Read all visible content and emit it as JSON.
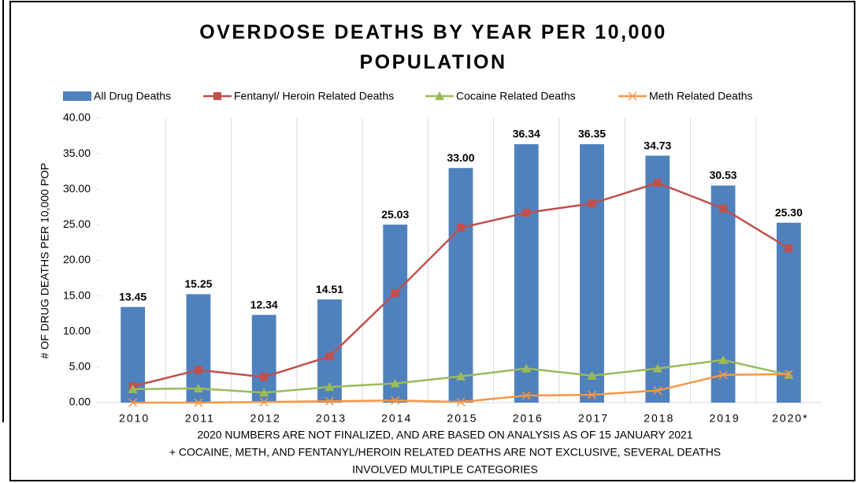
{
  "chart_data": {
    "type": "bar",
    "title": "OVERDOSE DEATHS BY YEAR PER 10,000 POPULATION",
    "ylabel": "# OF DRUG DEATHS PER 10,000 POP",
    "categories": [
      "2010",
      "2011",
      "2012",
      "2013",
      "2014",
      "2015",
      "2016",
      "2017",
      "2018",
      "2019",
      "2020*"
    ],
    "series": [
      {
        "name": "All Drug Deaths",
        "type": "bar",
        "color": "#4f81bd",
        "values": [
          13.45,
          15.25,
          12.34,
          14.51,
          25.03,
          33,
          36.34,
          36.35,
          34.73,
          30.53,
          25.3
        ],
        "value_labels": [
          "13.45",
          "15.25",
          "12.34",
          "14.51",
          "25.03",
          "33.00",
          "36.34",
          "36.35",
          "34.73",
          "30.53",
          "25.30"
        ]
      },
      {
        "name": "Fentanyl/ Heroin Related Deaths",
        "type": "line",
        "marker": "square",
        "color": "#c0504d",
        "values": [
          2.3,
          4.6,
          3.6,
          6.5,
          15.4,
          24.6,
          26.7,
          28.0,
          30.9,
          27.3,
          21.7
        ]
      },
      {
        "name": "Cocaine Related Deaths",
        "type": "line",
        "marker": "triangle",
        "color": "#9bbb59",
        "values": [
          1.9,
          2.0,
          1.4,
          2.2,
          2.7,
          3.7,
          4.8,
          3.8,
          4.8,
          6.0,
          3.9
        ]
      },
      {
        "name": "Meth Related Deaths",
        "type": "line",
        "marker": "x",
        "color": "#f79646",
        "values": [
          0,
          0,
          0.1,
          0.2,
          0.3,
          0.1,
          1.0,
          1.1,
          1.7,
          3.9,
          4.0
        ]
      }
    ],
    "ylim": [
      0,
      40
    ],
    "yticks": [
      {
        "value": 0,
        "label": "0.00"
      },
      {
        "value": 5,
        "label": "5.00"
      },
      {
        "value": 10,
        "label": "10.00"
      },
      {
        "value": 15,
        "label": "15.00"
      },
      {
        "value": 20,
        "label": "20.00"
      },
      {
        "value": 25,
        "label": "25.00"
      },
      {
        "value": 30,
        "label": "30.00"
      },
      {
        "value": 35,
        "label": "35.00"
      },
      {
        "value": 40,
        "label": "40.00"
      }
    ],
    "legend": "top",
    "notes": [
      "2020 NUMBERS ARE NOT FINALIZED, AND ARE BASED ON ANALYSIS AS OF 15 JANUARY 2021",
      "+ COCAINE, METH, AND FENTANYL/HEROIN RELATED DEATHS ARE NOT EXCLUSIVE, SEVERAL DEATHS",
      "INVOLVED MULTIPLE CATEGORIES"
    ]
  }
}
